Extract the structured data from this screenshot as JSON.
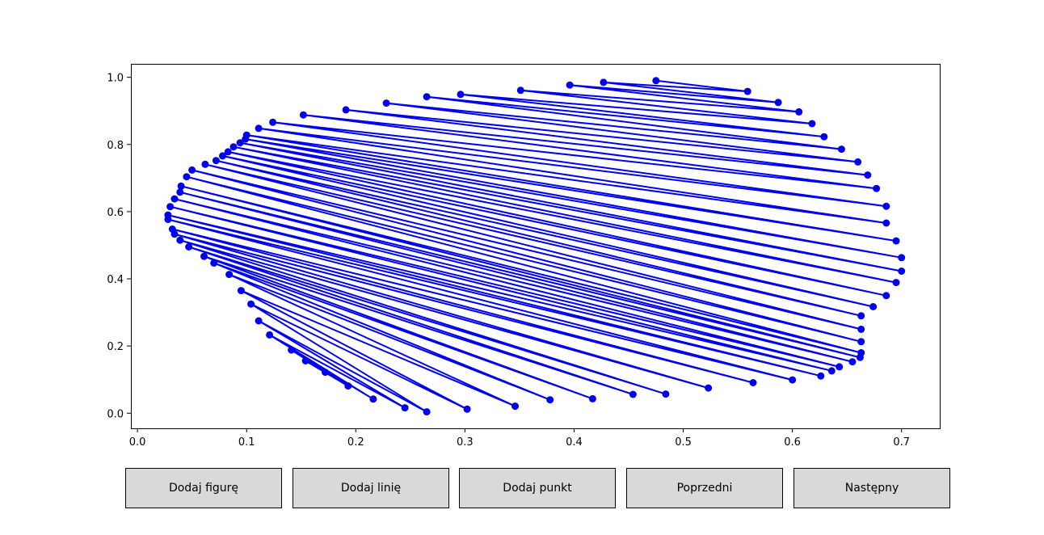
{
  "colors": {
    "series": "#0000ee",
    "button_bg": "#d9d9d9",
    "axes_frame": "#000000"
  },
  "buttons": [
    {
      "label": "Dodaj figurę"
    },
    {
      "label": "Dodaj linię"
    },
    {
      "label": "Dodaj punkt"
    },
    {
      "label": "Poprzedni"
    },
    {
      "label": "Następny"
    }
  ],
  "chart_data": {
    "type": "line",
    "markers": true,
    "grid": false,
    "xlim": [
      -0.006,
      0.735
    ],
    "ylim": [
      -0.045,
      1.04
    ],
    "xticks": [
      0.0,
      0.1,
      0.2,
      0.3,
      0.4,
      0.5,
      0.6,
      0.7
    ],
    "xtick_labels": [
      "0.0",
      "0.1",
      "0.2",
      "0.3",
      "0.4",
      "0.5",
      "0.6",
      "0.7"
    ],
    "yticks": [
      0.0,
      0.2,
      0.4,
      0.6,
      0.8,
      1.0
    ],
    "ytick_labels": [
      "0.0",
      "0.2",
      "0.4",
      "0.6",
      "0.8",
      "1.0"
    ],
    "series": [
      {
        "x": [
          0.475,
          0.559,
          0.427,
          0.587,
          0.396,
          0.606,
          0.351,
          0.618,
          0.296,
          0.629,
          0.265,
          0.645,
          0.228,
          0.66,
          0.191,
          0.669,
          0.152,
          0.677,
          0.124,
          0.686,
          0.111,
          0.686,
          0.1,
          0.695,
          0.099,
          0.7,
          0.094,
          0.7,
          0.088,
          0.695,
          0.083,
          0.686,
          0.078,
          0.674,
          0.072,
          0.663,
          0.062,
          0.663,
          0.05,
          0.663,
          0.045,
          0.663,
          0.04,
          0.662,
          0.039,
          0.655,
          0.034,
          0.643,
          0.03,
          0.636,
          0.028,
          0.626,
          0.028,
          0.6,
          0.032,
          0.564,
          0.034,
          0.523,
          0.039,
          0.484,
          0.047,
          0.454,
          0.061,
          0.417,
          0.07,
          0.378,
          0.084,
          0.346,
          0.095,
          0.302,
          0.104,
          0.265,
          0.111,
          0.245,
          0.121,
          0.216,
          0.141,
          0.193,
          0.154,
          0.172
        ],
        "y": [
          0.99,
          0.958,
          0.985,
          0.925,
          0.977,
          0.897,
          0.961,
          0.862,
          0.949,
          0.823,
          0.942,
          0.786,
          0.923,
          0.748,
          0.903,
          0.709,
          0.888,
          0.669,
          0.866,
          0.616,
          0.848,
          0.566,
          0.828,
          0.513,
          0.816,
          0.463,
          0.805,
          0.423,
          0.793,
          0.389,
          0.778,
          0.35,
          0.766,
          0.317,
          0.752,
          0.29,
          0.741,
          0.25,
          0.724,
          0.213,
          0.704,
          0.18,
          0.676,
          0.166,
          0.658,
          0.153,
          0.638,
          0.138,
          0.615,
          0.126,
          0.59,
          0.111,
          0.577,
          0.099,
          0.548,
          0.091,
          0.533,
          0.075,
          0.515,
          0.057,
          0.495,
          0.056,
          0.467,
          0.043,
          0.447,
          0.04,
          0.413,
          0.021,
          0.365,
          0.012,
          0.325,
          0.004,
          0.275,
          0.016,
          0.233,
          0.042,
          0.188,
          0.081,
          0.156,
          0.122
        ]
      }
    ]
  }
}
